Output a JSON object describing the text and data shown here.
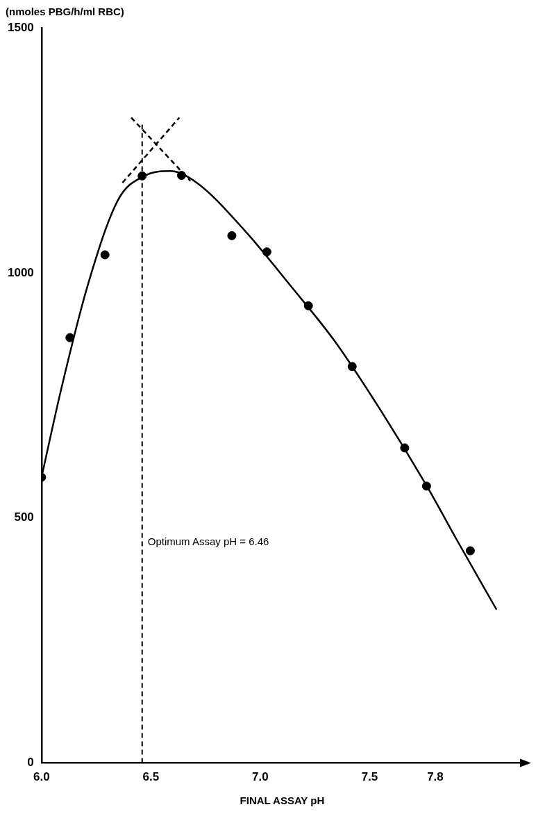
{
  "chart_data": {
    "type": "scatter",
    "ylabel": "(nmoles PBG/h/ml RBC)",
    "xlabel": "FINAL ASSAY pH",
    "xlim": [
      6.0,
      8.2
    ],
    "xticks": [
      {
        "value": 6.0,
        "label": "6.0"
      },
      {
        "value": 6.5,
        "label": "6.5"
      },
      {
        "value": 7.0,
        "label": "7.0"
      },
      {
        "value": 7.5,
        "label": "7.5"
      },
      {
        "value": 7.8,
        "label": "7.8"
      }
    ],
    "ylim": [
      0,
      1500
    ],
    "yticks": [
      0,
      500,
      1000,
      1500
    ],
    "grid": false,
    "legend": false,
    "series": [
      {
        "color": "#000000",
        "marker": "circle",
        "x": [
          6.0,
          6.13,
          6.29,
          6.46,
          6.64,
          6.87,
          7.03,
          7.22,
          7.42,
          7.66,
          7.76,
          7.96
        ],
        "values": [
          583,
          868,
          1037,
          1198,
          1199,
          1076,
          1043,
          933,
          809,
          643,
          565,
          433
        ]
      },
      {
        "type": "line",
        "color": "#000000",
        "marker": "none",
        "line_style": "solid",
        "x": [
          6.0,
          6.09,
          6.21,
          6.35,
          6.47,
          6.59,
          6.71,
          6.93,
          7.14,
          7.34,
          7.55,
          7.76,
          7.9,
          8.08
        ],
        "values": [
          583,
          763,
          973,
          1149,
          1198,
          1208,
          1184,
          1086,
          973,
          861,
          720,
          566,
          454,
          313
        ]
      },
      {
        "type": "line",
        "color": "#000000",
        "marker": "none",
        "line_style": "dashed",
        "x": [
          6.37,
          6.63
        ],
        "values": [
          1184,
          1317
        ]
      },
      {
        "type": "line",
        "color": "#000000",
        "marker": "none",
        "line_style": "dashed",
        "x": [
          6.41,
          6.68
        ],
        "values": [
          1317,
          1188
        ]
      }
    ],
    "ref_lines": [
      {
        "axis": "x",
        "value": 6.46,
        "label": "Optimum Assay pH = 6.46",
        "line_style": "dashed",
        "color": "#000000"
      }
    ]
  }
}
